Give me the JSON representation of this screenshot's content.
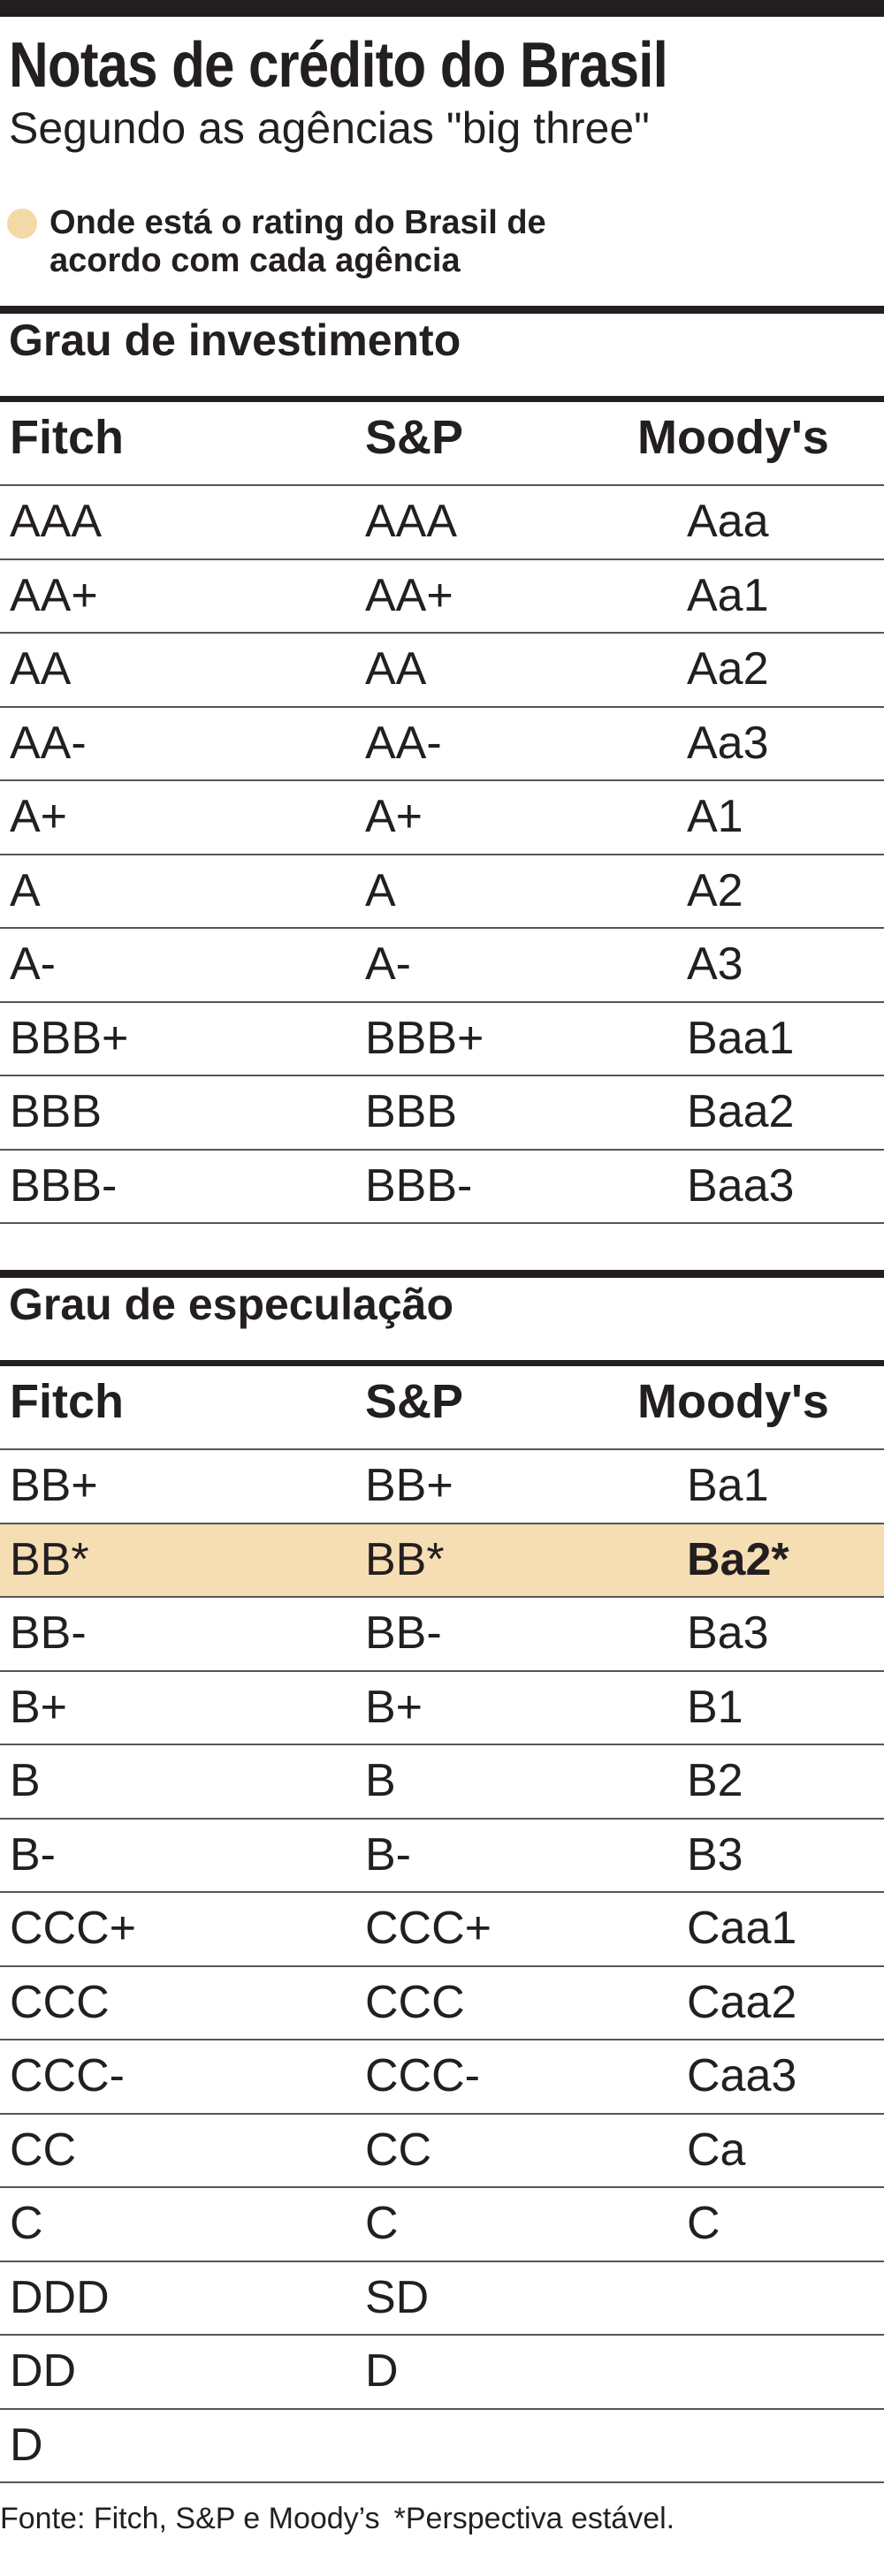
{
  "header": {
    "title": "Notas de crédito do Brasil",
    "subtitle": "Segundo as agências \"big three\""
  },
  "legend": {
    "lines": [
      "Onde está o rating do Brasil de",
      "acordo com cada agência"
    ]
  },
  "sections": [
    {
      "title": "Grau de investimento",
      "columns": [
        "Fitch",
        "S&P",
        "Moody's"
      ],
      "rows": [
        [
          "AAA",
          "AAA",
          "Aaa"
        ],
        [
          "AA+",
          "AA+",
          "Aa1"
        ],
        [
          "AA",
          "AA",
          "Aa2"
        ],
        [
          "AA-",
          "AA-",
          "Aa3"
        ],
        [
          "A+",
          "A+",
          "A1"
        ],
        [
          "A",
          "A",
          "A2"
        ],
        [
          "A-",
          "A-",
          "A3"
        ],
        [
          "BBB+",
          "BBB+",
          "Baa1"
        ],
        [
          "BBB",
          "BBB",
          "Baa2"
        ],
        [
          "BBB-",
          "BBB-",
          "Baa3"
        ]
      ]
    },
    {
      "title": "Grau de especulação",
      "columns": [
        "Fitch",
        "S&P",
        "Moody's"
      ],
      "rows": [
        [
          "BB+",
          "BB+",
          "Ba1"
        ],
        [
          "BB*",
          "BB*",
          "Ba2*"
        ],
        [
          "BB-",
          "BB-",
          "Ba3"
        ],
        [
          "B+",
          "B+",
          "B1"
        ],
        [
          "B",
          "B",
          "B2"
        ],
        [
          "B-",
          "B-",
          "B3"
        ],
        [
          "CCC+",
          "CCC+",
          "Caa1"
        ],
        [
          "CCC",
          "CCC",
          "Caa2"
        ],
        [
          "CCC-",
          "CCC-",
          "Caa3"
        ],
        [
          "CC",
          "CC",
          "Ca"
        ],
        [
          "C",
          "C",
          "C"
        ],
        [
          "DDD",
          "SD"
        ],
        [
          "DD",
          "D"
        ],
        [
          "D"
        ]
      ]
    }
  ],
  "footer": {
    "source": "Fonte: Fitch, S&P e Moody’s",
    "note": "*Perspectiva estável."
  }
}
